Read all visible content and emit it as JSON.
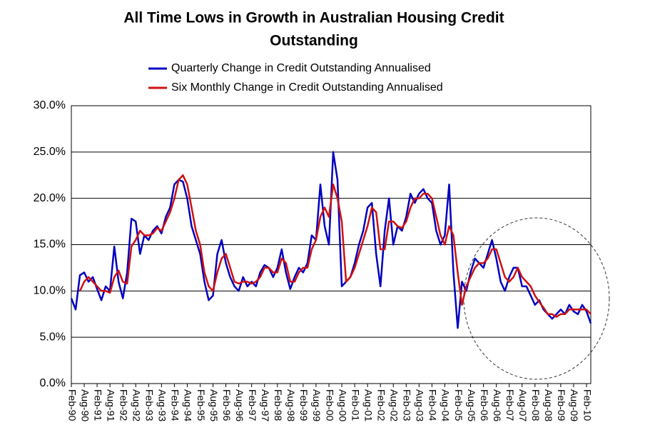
{
  "chart_data": {
    "type": "line",
    "title": [
      "All Time Lows in Growth in Australian Housing Credit",
      "Outstanding"
    ],
    "categories": [
      "Feb-90",
      null,
      null,
      "Aug-90",
      null,
      null,
      "Feb-91",
      null,
      null,
      "Aug-91",
      null,
      null,
      "Feb-92",
      null,
      null,
      "Aug-92",
      null,
      null,
      "Feb-93",
      null,
      null,
      "Aug-93",
      null,
      null,
      "Feb-94",
      null,
      null,
      "Aug-94",
      null,
      null,
      "Feb-95",
      null,
      null,
      "Aug-95",
      null,
      null,
      "Feb-96",
      null,
      null,
      "Aug-96",
      null,
      null,
      "Feb-97",
      null,
      null,
      "Aug-97",
      null,
      null,
      "Feb-98",
      null,
      null,
      "Aug-98",
      null,
      null,
      "Feb-99",
      null,
      null,
      "Aug-99",
      null,
      null,
      "Feb-00",
      null,
      null,
      "Aug-00",
      null,
      null,
      "Feb-01",
      null,
      null,
      "Aug-01",
      null,
      null,
      "Feb-02",
      null,
      null,
      "Aug-02",
      null,
      null,
      "Feb-03",
      null,
      null,
      "Aug-03",
      null,
      null,
      "Feb-04",
      null,
      null,
      "Aug-04",
      null,
      null,
      "Feb-05",
      null,
      null,
      "Aug-05",
      null,
      null,
      "Feb-06",
      null,
      null,
      "Aug-06",
      null,
      null,
      "Feb-07",
      null,
      null,
      "Aug-07",
      null,
      null,
      "Feb-08",
      null,
      null,
      "Aug-08",
      null,
      null,
      "Feb-09",
      null,
      null,
      "Aug-09",
      null,
      null,
      "Feb-10",
      null
    ],
    "series": [
      {
        "name": "Quarterly Change in Credit Outstanding Annualised",
        "color": "#0000c0",
        "values": [
          9.2,
          8.0,
          11.7,
          12.0,
          11.0,
          11.5,
          10.2,
          9.0,
          10.5,
          10.0,
          14.8,
          11.0,
          9.2,
          12.0,
          17.8,
          17.5,
          14.0,
          16.0,
          15.5,
          16.5,
          17.0,
          16.2,
          18.0,
          19.0,
          21.5,
          22.0,
          21.8,
          20.0,
          17.0,
          15.5,
          14.0,
          11.0,
          9.0,
          9.5,
          14.0,
          15.5,
          13.0,
          11.5,
          10.5,
          10.0,
          11.5,
          10.5,
          11.0,
          10.5,
          12.0,
          12.8,
          12.5,
          11.5,
          12.5,
          14.5,
          12.0,
          10.2,
          11.5,
          12.5,
          12.0,
          13.0,
          16.0,
          15.5,
          21.5,
          17.0,
          15.0,
          25.0,
          22.0,
          10.5,
          11.0,
          11.5,
          13.0,
          15.0,
          16.5,
          19.0,
          19.5,
          14.0,
          10.5,
          16.5,
          20.0,
          15.0,
          17.0,
          16.5,
          18.0,
          20.5,
          19.5,
          20.5,
          21.0,
          20.0,
          19.5,
          16.5,
          15.0,
          16.0,
          21.5,
          12.0,
          6.0,
          11.0,
          10.0,
          12.0,
          13.5,
          13.0,
          12.5,
          14.0,
          15.5,
          13.5,
          11.0,
          10.0,
          11.5,
          12.5,
          12.5,
          10.5,
          10.5,
          9.5,
          8.5,
          9.0,
          8.0,
          7.5,
          7.0,
          7.5,
          8.0,
          7.5,
          8.5,
          7.8,
          7.5,
          8.5,
          7.8,
          6.5
        ]
      },
      {
        "name": "Six Monthly Change in Credit Outstanding Annualised",
        "color": "#d01010",
        "values": [
          null,
          null,
          10.0,
          11.0,
          11.5,
          11.0,
          10.5,
          10.0,
          10.0,
          9.8,
          11.5,
          12.2,
          11.0,
          10.8,
          14.8,
          15.5,
          16.5,
          16.0,
          16.0,
          16.2,
          16.8,
          16.5,
          17.5,
          18.5,
          20.0,
          22.0,
          22.5,
          21.5,
          19.0,
          16.5,
          15.0,
          12.0,
          10.5,
          10.0,
          12.0,
          13.5,
          14.0,
          12.5,
          11.0,
          10.8,
          11.0,
          11.0,
          10.8,
          11.0,
          11.5,
          12.5,
          12.5,
          12.0,
          12.0,
          13.5,
          13.0,
          11.0,
          11.0,
          12.0,
          12.5,
          12.5,
          14.5,
          15.5,
          18.0,
          19.0,
          18.0,
          21.5,
          20.0,
          17.5,
          11.0,
          11.5,
          12.5,
          14.0,
          15.5,
          17.0,
          19.0,
          18.5,
          14.5,
          14.5,
          17.5,
          17.5,
          17.0,
          16.8,
          17.5,
          19.0,
          20.0,
          20.0,
          20.5,
          20.5,
          20.0,
          18.0,
          16.0,
          15.0,
          17.0,
          16.0,
          12.0,
          8.5,
          10.5,
          11.5,
          12.5,
          13.0,
          13.0,
          13.5,
          14.5,
          14.5,
          13.0,
          11.5,
          11.0,
          11.5,
          12.5,
          11.5,
          11.0,
          10.5,
          9.5,
          8.8,
          8.2,
          7.5,
          7.5,
          7.2,
          7.5,
          7.5,
          8.0,
          8.0,
          8.0,
          8.0,
          8.0,
          7.5
        ]
      }
    ],
    "ylim": [
      0,
      30
    ],
    "yticks": [
      {
        "value": 0,
        "label": "0.0%"
      },
      {
        "value": 5,
        "label": "5.0%"
      },
      {
        "value": 10,
        "label": "10.0%"
      },
      {
        "value": 15,
        "label": "15.0%"
      },
      {
        "value": 20,
        "label": "20.0%"
      },
      {
        "value": 25,
        "label": "25.0%"
      },
      {
        "value": 30,
        "label": "30.0%"
      }
    ],
    "grid": true,
    "legend": "top"
  }
}
